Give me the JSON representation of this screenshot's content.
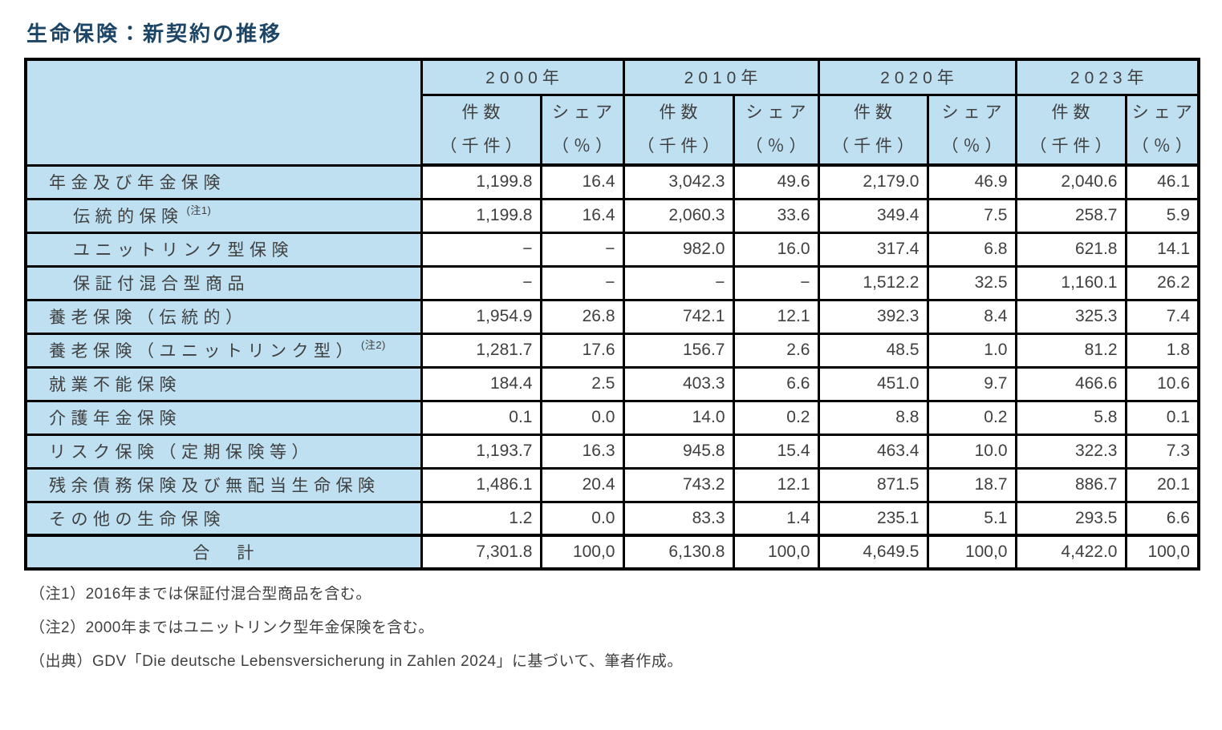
{
  "title": "生命保険：新契約の推移",
  "colors": {
    "header_bg": "#bee0f1",
    "border": "#000000",
    "title_text": "#1c4566",
    "body_text": "#404040"
  },
  "table": {
    "year_headers": [
      "2000年",
      "2010年",
      "2020年",
      "2023年"
    ],
    "measure_headers": {
      "count_line1": "件数",
      "count_line2": "（千件）",
      "share_line1": "シェア",
      "share_line2": "（％）"
    },
    "rows": [
      {
        "label": "年金及び年金保険",
        "indent": 1,
        "note": "",
        "values": [
          "1,199.8",
          "16.4",
          "3,042.3",
          "49.6",
          "2,179.0",
          "46.9",
          "2,040.6",
          "46.1"
        ]
      },
      {
        "label": "伝統的保険",
        "indent": 2,
        "note": "(注1)",
        "values": [
          "1,199.8",
          "16.4",
          "2,060.3",
          "33.6",
          "349.4",
          "7.5",
          "258.7",
          "5.9"
        ]
      },
      {
        "label": "ユニットリンク型保険",
        "indent": 2,
        "note": "",
        "values": [
          "−",
          "−",
          "982.0",
          "16.0",
          "317.4",
          "6.8",
          "621.8",
          "14.1"
        ]
      },
      {
        "label": "保証付混合型商品",
        "indent": 2,
        "note": "",
        "values": [
          "−",
          "−",
          "−",
          "−",
          "1,512.2",
          "32.5",
          "1,160.1",
          "26.2"
        ]
      },
      {
        "label": "養老保険（伝統的）",
        "indent": 1,
        "note": "",
        "values": [
          "1,954.9",
          "26.8",
          "742.1",
          "12.1",
          "392.3",
          "8.4",
          "325.3",
          "7.4"
        ]
      },
      {
        "label": "養老保険（ユニットリンク型）",
        "indent": 1,
        "note": "(注2)",
        "values": [
          "1,281.7",
          "17.6",
          "156.7",
          "2.6",
          "48.5",
          "1.0",
          "81.2",
          "1.8"
        ]
      },
      {
        "label": "就業不能保険",
        "indent": 1,
        "note": "",
        "values": [
          "184.4",
          "2.5",
          "403.3",
          "6.6",
          "451.0",
          "9.7",
          "466.6",
          "10.6"
        ]
      },
      {
        "label": "介護年金保険",
        "indent": 1,
        "note": "",
        "values": [
          "0.1",
          "0.0",
          "14.0",
          "0.2",
          "8.8",
          "0.2",
          "5.8",
          "0.1"
        ]
      },
      {
        "label": "リスク保険（定期保険等）",
        "indent": 1,
        "note": "",
        "values": [
          "1,193.7",
          "16.3",
          "945.8",
          "15.4",
          "463.4",
          "10.0",
          "322.3",
          "7.3"
        ]
      },
      {
        "label": "残余債務保険及び無配当生命保険",
        "indent": 1,
        "note": "",
        "values": [
          "1,486.1",
          "20.4",
          "743.2",
          "12.1",
          "871.5",
          "18.7",
          "886.7",
          "20.1"
        ]
      },
      {
        "label": "その他の生命保険",
        "indent": 1,
        "note": "",
        "values": [
          "1.2",
          "0.0",
          "83.3",
          "1.4",
          "235.1",
          "5.1",
          "293.5",
          "6.6"
        ]
      }
    ],
    "total_row": {
      "label": "合　計",
      "values": [
        "7,301.8",
        "100,0",
        "6,130.8",
        "100,0",
        "4,649.5",
        "100,0",
        "4,422.0",
        "100,0"
      ]
    }
  },
  "footnotes": [
    "（注1）2016年までは保証付混合型商品を含む。",
    "（注2）2000年まではユニットリンク型年金保険を含む。",
    "（出典）GDV「Die deutsche Lebensversicherung in Zahlen 2024」に基づいて、筆者作成。"
  ]
}
